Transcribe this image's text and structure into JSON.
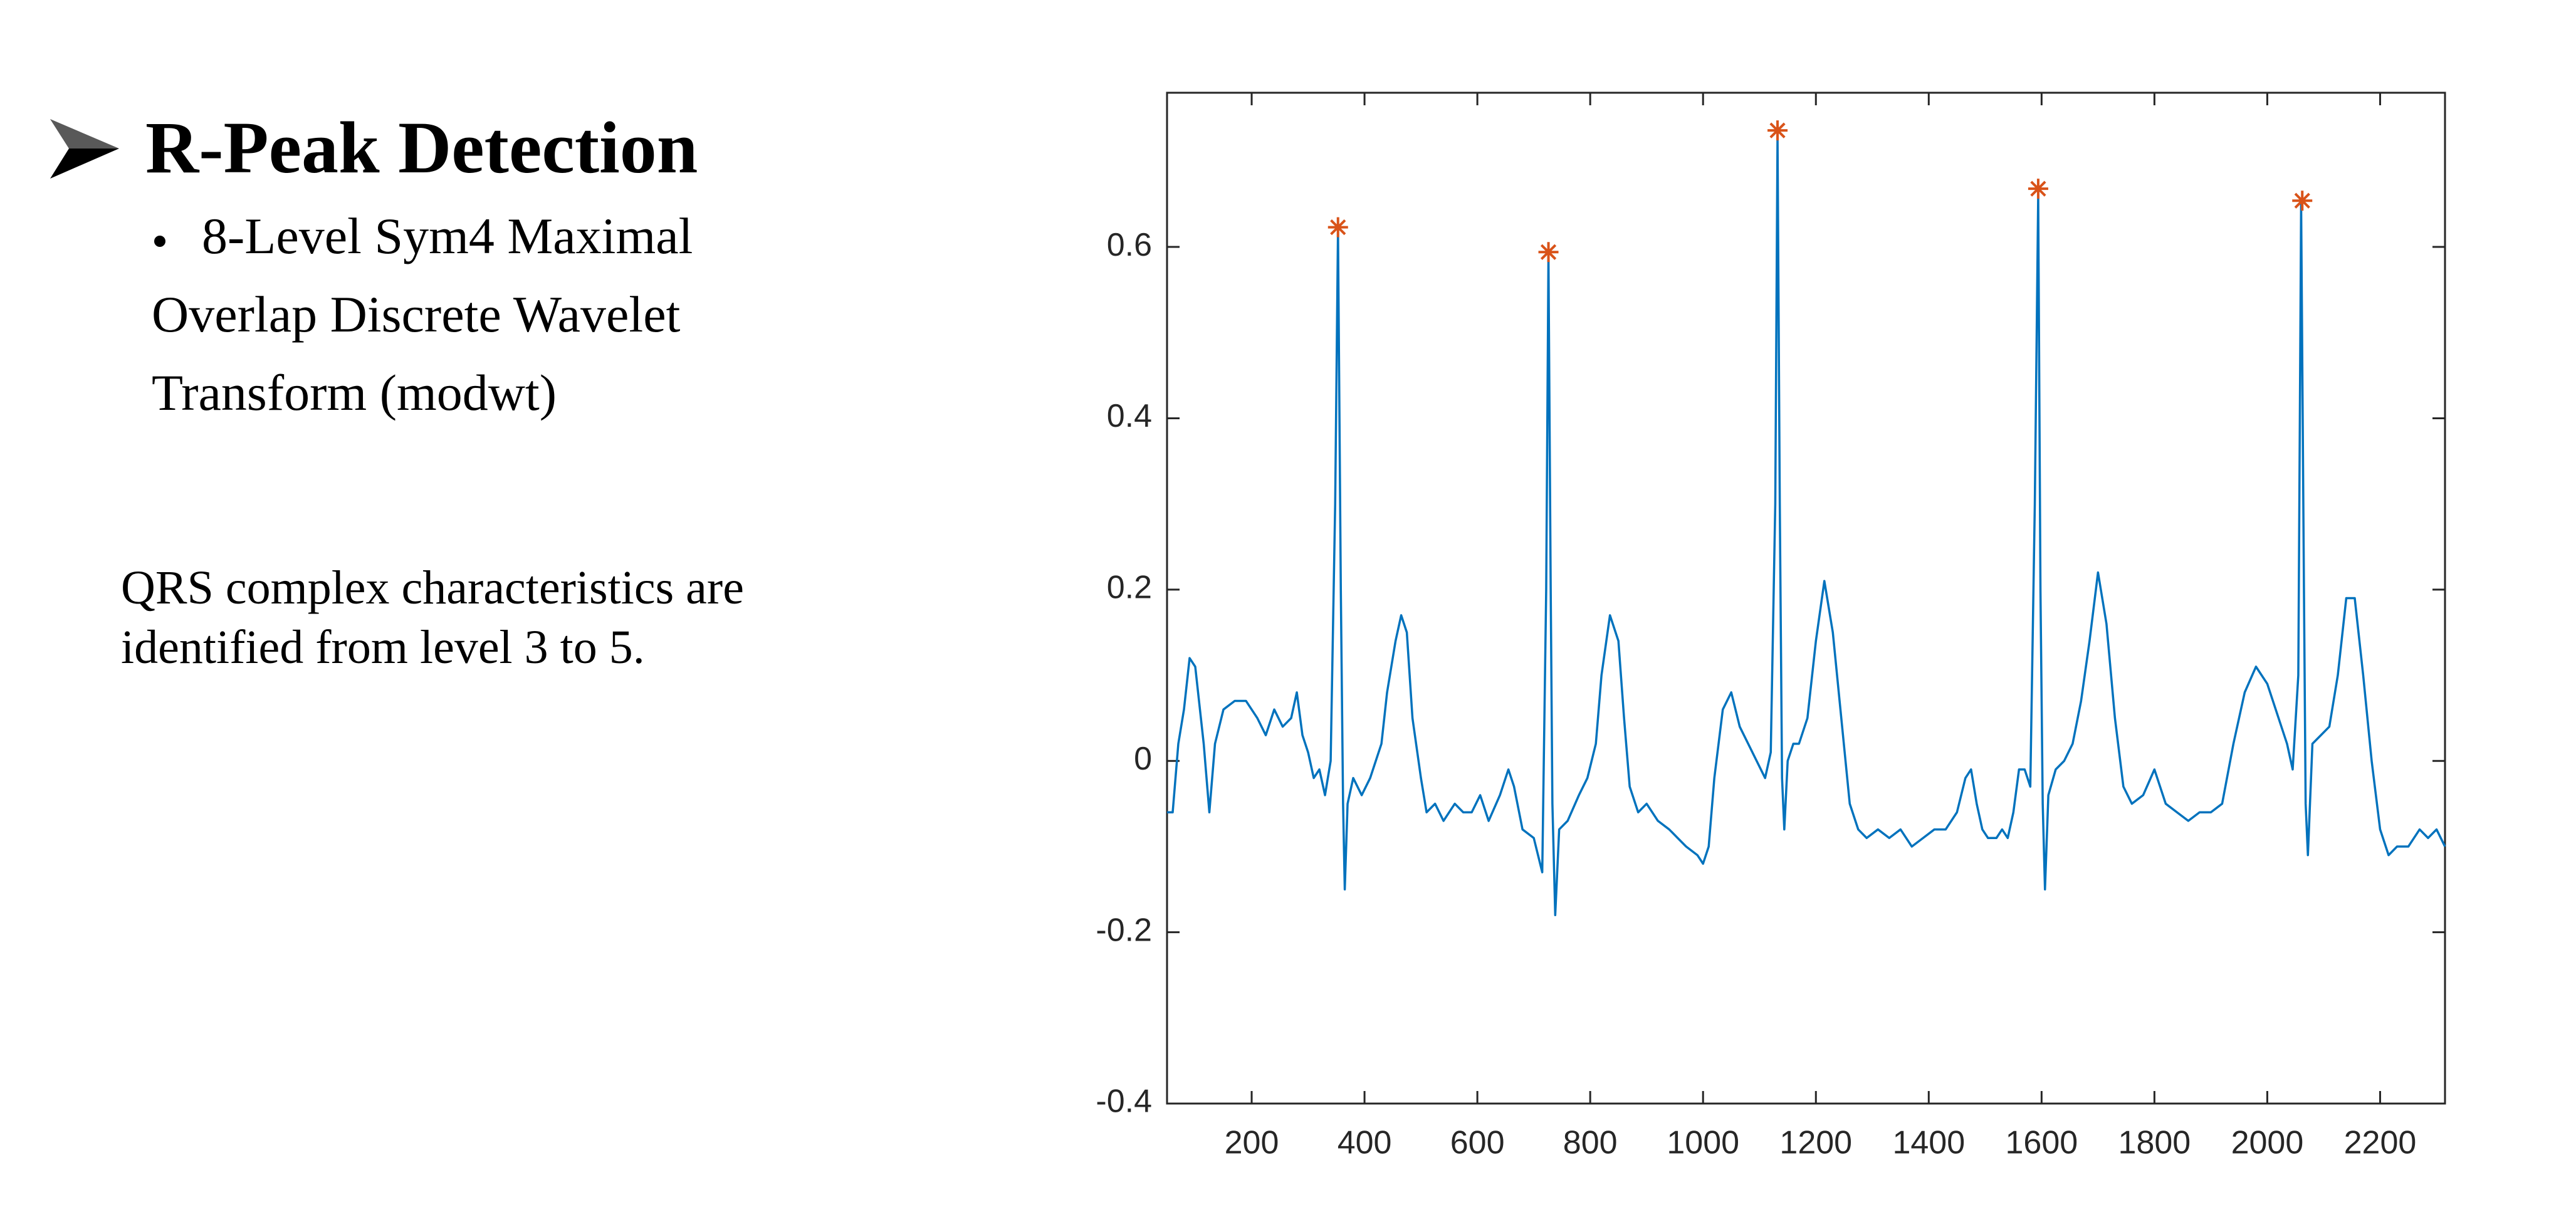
{
  "slide": {
    "title": "R-Peak Detection",
    "bullet_lines": [
      "8-Level Sym4 Maximal",
      "Overlap Discrete Wavelet",
      "Transform (modwt)"
    ],
    "note_lines": [
      "QRS complex characteristics are",
      "identified from level 3 to 5."
    ]
  },
  "chart_data": {
    "type": "line",
    "xlim": [
      50,
      2315
    ],
    "ylim": [
      -0.4,
      0.78
    ],
    "xticks": [
      200,
      400,
      600,
      800,
      1000,
      1200,
      1400,
      1600,
      1800,
      2000,
      2200
    ],
    "yticks": [
      -0.4,
      -0.2,
      0,
      0.2,
      0.4,
      0.6
    ],
    "grid": false,
    "series": [
      {
        "type": "line",
        "color": "#0072bd",
        "x": [
          50,
          60,
          70,
          80,
          90,
          100,
          110,
          115,
          125,
          135,
          150,
          170,
          190,
          210,
          225,
          240,
          255,
          270,
          280,
          290,
          300,
          310,
          320,
          330,
          340,
          348,
          353,
          358,
          362,
          365,
          370,
          380,
          395,
          410,
          420,
          430,
          440,
          455,
          465,
          475,
          485,
          500,
          510,
          525,
          540,
          560,
          575,
          590,
          605,
          620,
          640,
          655,
          665,
          680,
          700,
          715,
          722,
          726,
          730,
          733,
          738,
          745,
          760,
          780,
          795,
          810,
          820,
          835,
          850,
          860,
          870,
          885,
          900,
          920,
          940,
          955,
          970,
          990,
          1000,
          1010,
          1020,
          1035,
          1050,
          1065,
          1080,
          1095,
          1110,
          1120,
          1128,
          1132,
          1136,
          1140,
          1144,
          1150,
          1160,
          1170,
          1185,
          1200,
          1215,
          1230,
          1245,
          1260,
          1275,
          1290,
          1310,
          1330,
          1350,
          1370,
          1390,
          1410,
          1430,
          1450,
          1465,
          1475,
          1485,
          1495,
          1505,
          1520,
          1530,
          1540,
          1550,
          1560,
          1570,
          1580,
          1588,
          1594,
          1598,
          1602,
          1606,
          1612,
          1625,
          1640,
          1655,
          1670,
          1685,
          1700,
          1715,
          1730,
          1745,
          1760,
          1780,
          1800,
          1820,
          1840,
          1860,
          1880,
          1900,
          1920,
          1940,
          1960,
          1980,
          2000,
          2020,
          2035,
          2045,
          2055,
          2060,
          2065,
          2068,
          2072,
          2080,
          2095,
          2110,
          2125,
          2140,
          2155,
          2170,
          2185,
          2200,
          2215,
          2230,
          2250,
          2270,
          2285,
          2300,
          2315
        ],
        "values": [
          -0.06,
          -0.06,
          0.02,
          0.06,
          0.12,
          0.11,
          0.05,
          0.02,
          -0.06,
          0.02,
          0.06,
          0.07,
          0.07,
          0.05,
          0.03,
          0.06,
          0.04,
          0.05,
          0.08,
          0.03,
          0.01,
          -0.02,
          -0.01,
          -0.04,
          0.0,
          0.3,
          0.62,
          0.2,
          -0.05,
          -0.15,
          -0.05,
          -0.02,
          -0.04,
          -0.02,
          0.0,
          0.02,
          0.08,
          0.14,
          0.17,
          0.15,
          0.05,
          -0.02,
          -0.06,
          -0.05,
          -0.07,
          -0.05,
          -0.06,
          -0.06,
          -0.04,
          -0.07,
          -0.04,
          -0.01,
          -0.03,
          -0.08,
          -0.09,
          -0.13,
          0.2,
          0.59,
          0.2,
          -0.05,
          -0.18,
          -0.08,
          -0.07,
          -0.04,
          -0.02,
          0.02,
          0.1,
          0.17,
          0.14,
          0.05,
          -0.03,
          -0.06,
          -0.05,
          -0.07,
          -0.08,
          -0.09,
          -0.1,
          -0.11,
          -0.12,
          -0.1,
          -0.02,
          0.06,
          0.08,
          0.04,
          0.02,
          0.0,
          -0.02,
          0.01,
          0.3,
          0.73,
          0.3,
          -0.02,
          -0.08,
          0.0,
          0.02,
          0.02,
          0.05,
          0.14,
          0.21,
          0.15,
          0.05,
          -0.05,
          -0.08,
          -0.09,
          -0.08,
          -0.09,
          -0.08,
          -0.1,
          -0.09,
          -0.08,
          -0.08,
          -0.06,
          -0.02,
          -0.01,
          -0.05,
          -0.08,
          -0.09,
          -0.09,
          -0.08,
          -0.09,
          -0.06,
          -0.01,
          -0.01,
          -0.03,
          0.3,
          0.66,
          0.2,
          -0.05,
          -0.15,
          -0.04,
          -0.01,
          0.0,
          0.02,
          0.07,
          0.14,
          0.22,
          0.16,
          0.05,
          -0.03,
          -0.05,
          -0.04,
          -0.01,
          -0.05,
          -0.06,
          -0.07,
          -0.06,
          -0.06,
          -0.05,
          0.02,
          0.08,
          0.11,
          0.09,
          0.05,
          0.02,
          -0.01,
          0.1,
          0.65,
          0.2,
          -0.05,
          -0.11,
          0.02,
          0.03,
          0.04,
          0.1,
          0.19,
          0.19,
          0.1,
          0.0,
          -0.08,
          -0.11,
          -0.1,
          -0.1,
          -0.08,
          -0.09,
          -0.08,
          -0.1
        ]
      },
      {
        "type": "scatter",
        "marker": "asterisk",
        "color": "#d95319",
        "x": [
          353,
          726,
          1132,
          1594,
          2062
        ],
        "values": [
          0.623,
          0.594,
          0.736,
          0.668,
          0.654
        ]
      }
    ]
  }
}
